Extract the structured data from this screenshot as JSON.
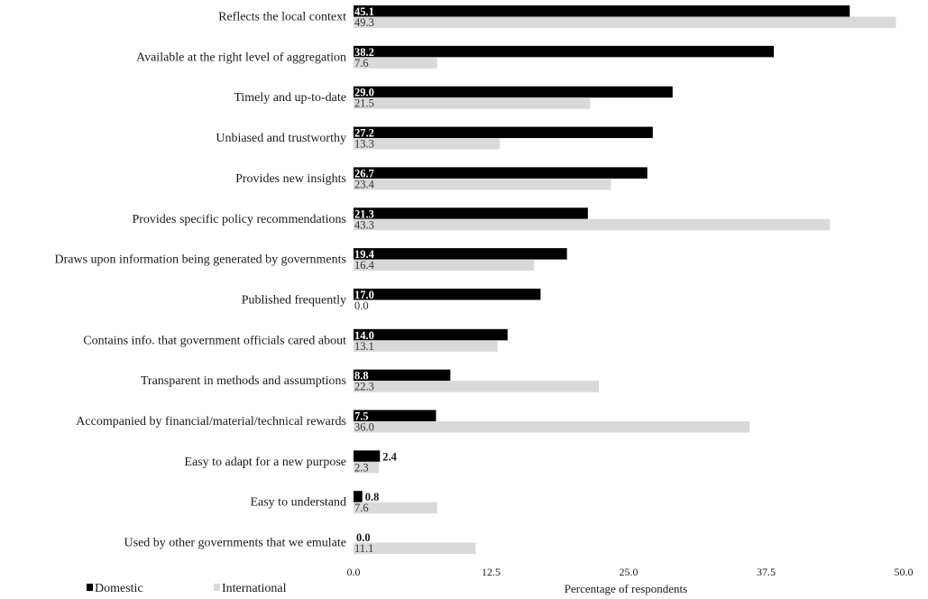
{
  "chart_data": {
    "type": "bar",
    "orientation": "horizontal",
    "categories": [
      "Reflects the local context",
      "Available at the right level of aggregation",
      "Timely and up-to-date",
      "Unbiased and trustworthy",
      "Provides new insights",
      "Provides specific policy recommendations",
      "Draws upon information being generated by governments",
      "Published frequently",
      "Contains info. that government officials cared about",
      "Transparent in methods and assumptions",
      "Accompanied by financial/material/technical rewards",
      "Easy to adapt for a new purpose",
      "Easy to understand",
      "Used by other governments that we emulate"
    ],
    "series": [
      {
        "name": "Domestic",
        "color": "#000000",
        "values": [
          45.1,
          38.2,
          29.0,
          27.2,
          26.7,
          21.3,
          19.4,
          17.0,
          14.0,
          8.8,
          7.5,
          2.4,
          0.8,
          0.0
        ],
        "labels": [
          "45.1",
          "38.2",
          "29.0",
          "27.2",
          "26.7",
          "21.3",
          "19.4",
          "17.0",
          "14.0",
          "8.8",
          "7.5",
          "2.4",
          "0.8",
          "0.0"
        ]
      },
      {
        "name": "International",
        "color": "#d9d9d9",
        "values": [
          49.3,
          7.6,
          21.5,
          13.3,
          23.4,
          43.3,
          16.4,
          0.0,
          13.1,
          22.3,
          36.0,
          2.3,
          7.6,
          11.1
        ],
        "labels": [
          "49.3",
          "7.6",
          "21.5",
          "13.3",
          "23.4",
          "43.3",
          "16.4",
          "0.0",
          "13.1",
          "22.3",
          "36.0",
          "2.3",
          "7.6",
          "11.1"
        ]
      }
    ],
    "xlabel": "Percentage of respondents",
    "ylabel": "",
    "xlim": [
      0,
      50
    ],
    "xticks": [
      "0.0",
      "12.5",
      "25.0",
      "37.5",
      "50.0"
    ],
    "grid": false,
    "legend_position": "bottom-left"
  }
}
